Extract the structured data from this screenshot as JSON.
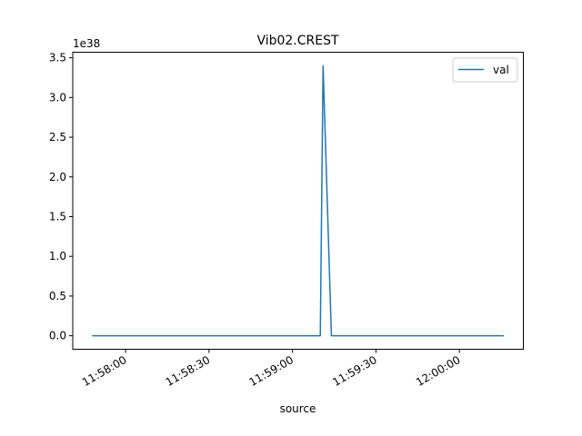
{
  "chart_data": {
    "type": "line",
    "title": "Vib02.CREST",
    "xlabel": "source",
    "ylabel": "",
    "y_scale_label": "1e38",
    "x_ticks": [
      "11:58:00",
      "11:58:30",
      "11:59:00",
      "11:59:30",
      "12:00:00"
    ],
    "y_ticks": [
      "0.0",
      "0.5",
      "1.0",
      "1.5",
      "2.0",
      "2.5",
      "3.0",
      "3.5"
    ],
    "xlim": [
      "11:57:41",
      "12:00:23"
    ],
    "ylim": [
      -0.17,
      3.57
    ],
    "grid": false,
    "legend_position": "top-right",
    "series": [
      {
        "name": "val",
        "color": "#1f77b4",
        "x": [
          "11:57:48",
          "11:59:10",
          "11:59:11",
          "11:59:14",
          "12:00:16"
        ],
        "y": [
          0,
          0,
          3.4,
          0,
          0
        ]
      }
    ]
  }
}
